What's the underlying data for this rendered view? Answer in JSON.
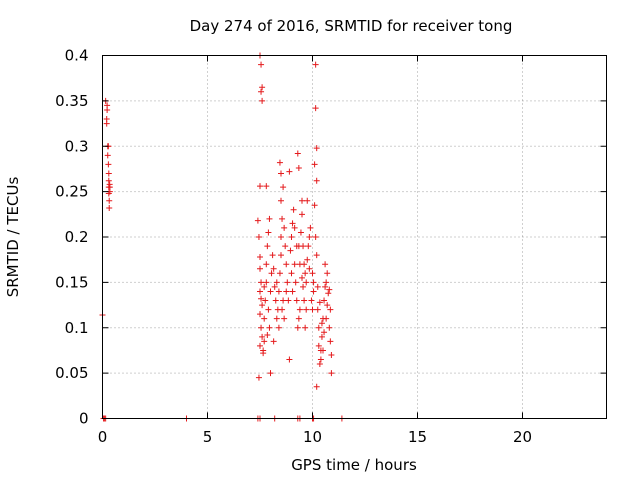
{
  "chart_data": {
    "type": "scatter",
    "title": "Day 274 of 2016, SRMTID for receiver tong",
    "xlabel": "GPS time / hours",
    "ylabel": "SRMTID / TECUs",
    "xlim": [
      0,
      24
    ],
    "ylim": [
      0,
      0.4
    ],
    "xticks": [
      0,
      5,
      10,
      15,
      20
    ],
    "yticks": [
      0,
      0.05,
      0.1,
      0.15,
      0.2,
      0.25,
      0.3,
      0.35,
      0.4
    ],
    "xtick_labels": [
      "0",
      "5",
      "10",
      "15",
      "20"
    ],
    "ytick_labels": [
      "0",
      "0.05",
      "0.1",
      "0.15",
      "0.2",
      "0.25",
      "0.3",
      "0.35",
      "0.4"
    ],
    "grid": true,
    "marker": "+",
    "color": "#e41a1c",
    "series": [
      {
        "name": "SRMTID",
        "points": [
          [
            0.0,
            0.114
          ],
          [
            0.05,
            0.0
          ],
          [
            0.1,
            0.0
          ],
          [
            0.15,
            0.35
          ],
          [
            0.15,
            0.0
          ],
          [
            0.2,
            0.33
          ],
          [
            0.2,
            0.325
          ],
          [
            0.22,
            0.34
          ],
          [
            0.25,
            0.3
          ],
          [
            0.25,
            0.29
          ],
          [
            0.28,
            0.28
          ],
          [
            0.3,
            0.262
          ],
          [
            0.3,
            0.255
          ],
          [
            0.3,
            0.248
          ],
          [
            0.32,
            0.24
          ],
          [
            0.32,
            0.232
          ],
          [
            0.35,
            0.255
          ],
          [
            0.35,
            0.25
          ],
          [
            0.22,
            0.345
          ],
          [
            0.28,
            0.3
          ],
          [
            0.3,
            0.27
          ],
          [
            0.34,
            0.258
          ],
          [
            4.0,
            0.0
          ],
          [
            7.4,
            0.0
          ],
          [
            7.5,
            0.0
          ],
          [
            8.2,
            0.0
          ],
          [
            9.3,
            0.0
          ],
          [
            9.4,
            0.0
          ],
          [
            10.0,
            0.0
          ],
          [
            10.05,
            0.0
          ],
          [
            11.4,
            0.0
          ],
          [
            7.45,
            0.045
          ],
          [
            7.5,
            0.4
          ],
          [
            7.55,
            0.39
          ],
          [
            7.6,
            0.365
          ],
          [
            7.55,
            0.36
          ],
          [
            7.6,
            0.35
          ],
          [
            7.5,
            0.256
          ],
          [
            7.8,
            0.256
          ],
          [
            10.15,
            0.39
          ],
          [
            10.15,
            0.342
          ],
          [
            10.2,
            0.298
          ],
          [
            10.1,
            0.28
          ],
          [
            10.2,
            0.262
          ],
          [
            9.3,
            0.292
          ],
          [
            9.35,
            0.276
          ],
          [
            8.45,
            0.282
          ],
          [
            8.5,
            0.27
          ],
          [
            8.9,
            0.272
          ],
          [
            7.4,
            0.218
          ],
          [
            7.45,
            0.2
          ],
          [
            7.5,
            0.178
          ],
          [
            7.5,
            0.165
          ],
          [
            7.55,
            0.15
          ],
          [
            7.5,
            0.14
          ],
          [
            7.55,
            0.132
          ],
          [
            7.6,
            0.125
          ],
          [
            7.5,
            0.115
          ],
          [
            7.55,
            0.1
          ],
          [
            7.6,
            0.09
          ],
          [
            7.5,
            0.08
          ],
          [
            7.65,
            0.072
          ],
          [
            7.7,
            0.085
          ],
          [
            7.7,
            0.11
          ],
          [
            7.75,
            0.13
          ],
          [
            7.8,
            0.15
          ],
          [
            7.8,
            0.17
          ],
          [
            7.85,
            0.19
          ],
          [
            7.9,
            0.205
          ],
          [
            7.95,
            0.22
          ],
          [
            7.9,
            0.12
          ],
          [
            7.95,
            0.1
          ],
          [
            8.0,
            0.05
          ],
          [
            8.0,
            0.14
          ],
          [
            8.05,
            0.16
          ],
          [
            8.1,
            0.18
          ],
          [
            8.15,
            0.165
          ],
          [
            8.2,
            0.145
          ],
          [
            8.25,
            0.13
          ],
          [
            8.3,
            0.11
          ],
          [
            8.35,
            0.12
          ],
          [
            8.4,
            0.14
          ],
          [
            8.45,
            0.16
          ],
          [
            8.5,
            0.18
          ],
          [
            8.5,
            0.2
          ],
          [
            8.55,
            0.22
          ],
          [
            8.5,
            0.24
          ],
          [
            8.6,
            0.255
          ],
          [
            8.65,
            0.21
          ],
          [
            8.7,
            0.19
          ],
          [
            8.75,
            0.17
          ],
          [
            8.8,
            0.15
          ],
          [
            8.85,
            0.13
          ],
          [
            8.9,
            0.065
          ],
          [
            8.95,
            0.185
          ],
          [
            9.0,
            0.2
          ],
          [
            9.05,
            0.215
          ],
          [
            9.1,
            0.23
          ],
          [
            9.15,
            0.17
          ],
          [
            9.2,
            0.15
          ],
          [
            9.25,
            0.13
          ],
          [
            9.3,
            0.1
          ],
          [
            9.35,
            0.11
          ],
          [
            9.4,
            0.12
          ],
          [
            9.45,
            0.205
          ],
          [
            9.5,
            0.225
          ],
          [
            9.5,
            0.24
          ],
          [
            9.55,
            0.19
          ],
          [
            9.6,
            0.17
          ],
          [
            9.65,
            0.16
          ],
          [
            9.7,
            0.15
          ],
          [
            9.75,
            0.175
          ],
          [
            9.8,
            0.19
          ],
          [
            9.85,
            0.2
          ],
          [
            9.9,
            0.21
          ],
          [
            9.95,
            0.13
          ],
          [
            10.0,
            0.12
          ],
          [
            10.05,
            0.14
          ],
          [
            10.1,
            0.235
          ],
          [
            10.15,
            0.2
          ],
          [
            10.2,
            0.18
          ],
          [
            10.25,
            0.12
          ],
          [
            10.3,
            0.1
          ],
          [
            10.3,
            0.08
          ],
          [
            10.35,
            0.06
          ],
          [
            10.2,
            0.035
          ],
          [
            10.4,
            0.075
          ],
          [
            10.45,
            0.09
          ],
          [
            10.5,
            0.11
          ],
          [
            10.55,
            0.13
          ],
          [
            10.6,
            0.17
          ],
          [
            10.6,
            0.145
          ],
          [
            10.65,
            0.15
          ],
          [
            10.7,
            0.16
          ],
          [
            10.7,
            0.125
          ],
          [
            10.75,
            0.138
          ],
          [
            10.8,
            0.142
          ],
          [
            10.8,
            0.1
          ],
          [
            10.85,
            0.085
          ],
          [
            10.9,
            0.07
          ],
          [
            10.9,
            0.05
          ],
          [
            10.85,
            0.12
          ],
          [
            10.5,
            0.075
          ],
          [
            10.4,
            0.065
          ],
          [
            8.15,
            0.085
          ],
          [
            7.65,
            0.075
          ],
          [
            8.6,
            0.13
          ],
          [
            8.65,
            0.11
          ],
          [
            9.15,
            0.21
          ],
          [
            9.25,
            0.19
          ],
          [
            9.6,
            0.13
          ],
          [
            9.7,
            0.12
          ],
          [
            10.0,
            0.16
          ],
          [
            10.05,
            0.15
          ],
          [
            7.7,
            0.145
          ],
          [
            7.85,
            0.092
          ],
          [
            8.3,
            0.15
          ],
          [
            8.4,
            0.1
          ],
          [
            8.55,
            0.12
          ],
          [
            8.75,
            0.14
          ],
          [
            9.0,
            0.16
          ],
          [
            9.05,
            0.14
          ],
          [
            9.35,
            0.19
          ],
          [
            9.4,
            0.17
          ],
          [
            9.5,
            0.155
          ],
          [
            9.55,
            0.145
          ],
          [
            9.65,
            0.1
          ],
          [
            9.75,
            0.24
          ],
          [
            9.85,
            0.165
          ],
          [
            10.25,
            0.145
          ],
          [
            10.35,
            0.128
          ],
          [
            10.45,
            0.105
          ],
          [
            10.55,
            0.095
          ],
          [
            10.65,
            0.11
          ]
        ]
      }
    ]
  }
}
